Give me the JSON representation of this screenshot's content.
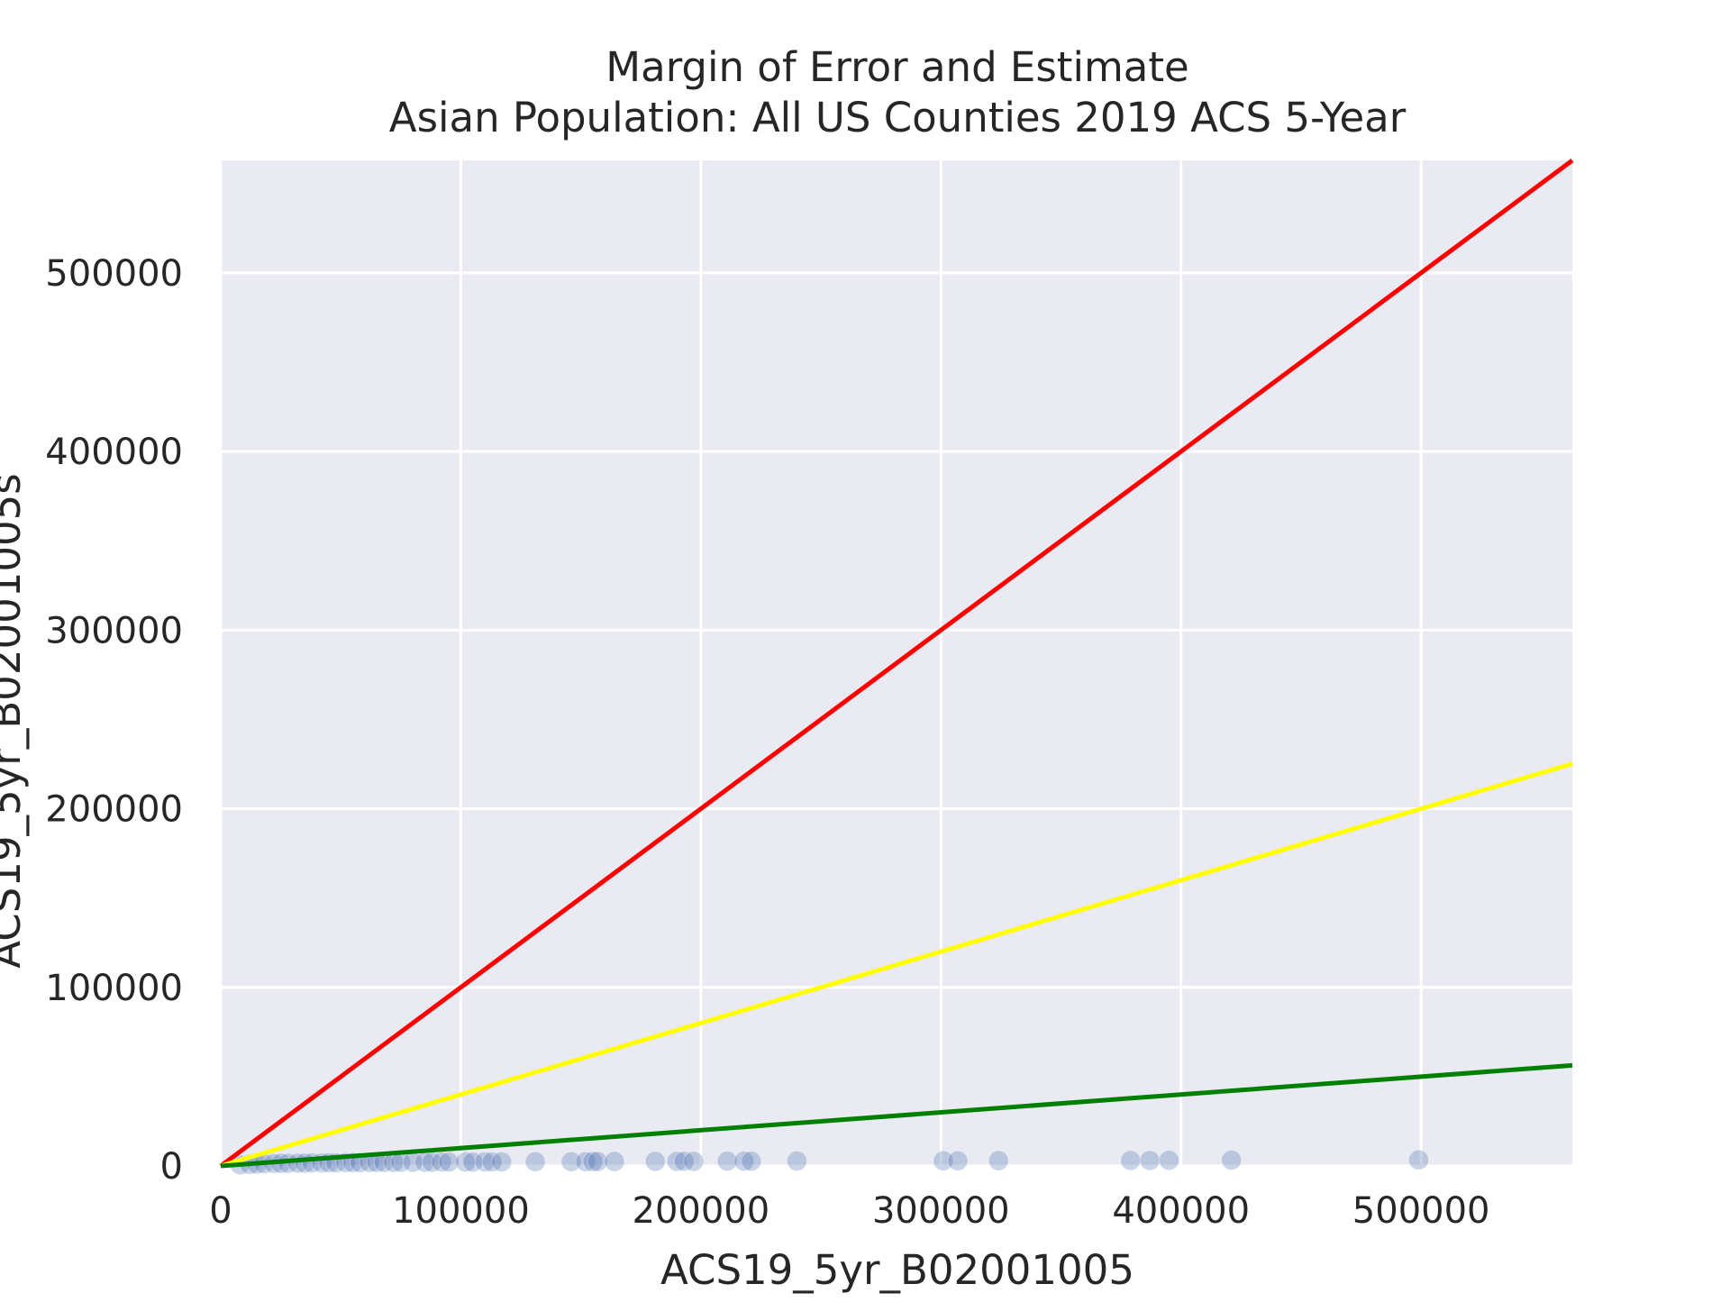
{
  "chart_data": {
    "type": "scatter",
    "title": "Margin of Error and Estimate",
    "subtitle": "Asian Population: All US Counties 2019 ACS 5-Year",
    "xlabel": "ACS19_5yr_B02001005",
    "ylabel": "ACS19_5yr_B02001005s",
    "xlim": [
      0,
      563000
    ],
    "ylim": [
      0,
      563000
    ],
    "x_ticks": [
      0,
      100000,
      200000,
      300000,
      400000,
      500000
    ],
    "y_ticks": [
      0,
      100000,
      200000,
      300000,
      400000,
      500000
    ],
    "x_tick_labels": [
      "0",
      "100000",
      "200000",
      "300000",
      "400000",
      "500000"
    ],
    "y_tick_labels": [
      "0",
      "100000",
      "200000",
      "300000",
      "400000",
      "500000"
    ],
    "grid": true,
    "colors": {
      "background": "#eaeaf2",
      "grid": "#ffffff",
      "points": "#4c72b0",
      "red": "#ff0000",
      "yellow": "#ffff00",
      "green": "#008000"
    },
    "reference_lines": [
      {
        "color": "red",
        "slope": 1.0
      },
      {
        "color": "yellow",
        "slope": 0.4
      },
      {
        "color": "green",
        "slope": 0.1
      }
    ],
    "points": [
      {
        "x": 8000,
        "y": 700
      },
      {
        "x": 12000,
        "y": 900
      },
      {
        "x": 15000,
        "y": 1100
      },
      {
        "x": 18000,
        "y": 1300
      },
      {
        "x": 22000,
        "y": 1400
      },
      {
        "x": 25000,
        "y": 1500
      },
      {
        "x": 28000,
        "y": 1500
      },
      {
        "x": 32000,
        "y": 1600
      },
      {
        "x": 35000,
        "y": 1600
      },
      {
        "x": 38000,
        "y": 1700
      },
      {
        "x": 42000,
        "y": 1700
      },
      {
        "x": 45000,
        "y": 1800
      },
      {
        "x": 48000,
        "y": 1800
      },
      {
        "x": 52000,
        "y": 1900
      },
      {
        "x": 55000,
        "y": 1900
      },
      {
        "x": 58000,
        "y": 1900
      },
      {
        "x": 62000,
        "y": 2000
      },
      {
        "x": 65000,
        "y": 2000
      },
      {
        "x": 68000,
        "y": 2000
      },
      {
        "x": 72000,
        "y": 2000
      },
      {
        "x": 75000,
        "y": 2100
      },
      {
        "x": 80000,
        "y": 2100
      },
      {
        "x": 85000,
        "y": 2100
      },
      {
        "x": 88000,
        "y": 2100
      },
      {
        "x": 92000,
        "y": 2200
      },
      {
        "x": 95000,
        "y": 2200
      },
      {
        "x": 102000,
        "y": 2200
      },
      {
        "x": 105000,
        "y": 2200
      },
      {
        "x": 110000,
        "y": 2300
      },
      {
        "x": 113000,
        "y": 2300
      },
      {
        "x": 117000,
        "y": 2300
      },
      {
        "x": 131000,
        "y": 2400
      },
      {
        "x": 146000,
        "y": 2400
      },
      {
        "x": 152000,
        "y": 2400
      },
      {
        "x": 155000,
        "y": 2500
      },
      {
        "x": 157000,
        "y": 2500
      },
      {
        "x": 164000,
        "y": 2500
      },
      {
        "x": 181000,
        "y": 2600
      },
      {
        "x": 190000,
        "y": 2600
      },
      {
        "x": 193000,
        "y": 2600
      },
      {
        "x": 197000,
        "y": 2600
      },
      {
        "x": 211000,
        "y": 2700
      },
      {
        "x": 218000,
        "y": 2700
      },
      {
        "x": 221000,
        "y": 2700
      },
      {
        "x": 240000,
        "y": 2800
      },
      {
        "x": 301000,
        "y": 2900
      },
      {
        "x": 307000,
        "y": 2900
      },
      {
        "x": 324000,
        "y": 3000
      },
      {
        "x": 379000,
        "y": 3100
      },
      {
        "x": 387000,
        "y": 3100
      },
      {
        "x": 395000,
        "y": 3200
      },
      {
        "x": 421000,
        "y": 3300
      },
      {
        "x": 499000,
        "y": 3400
      }
    ]
  }
}
